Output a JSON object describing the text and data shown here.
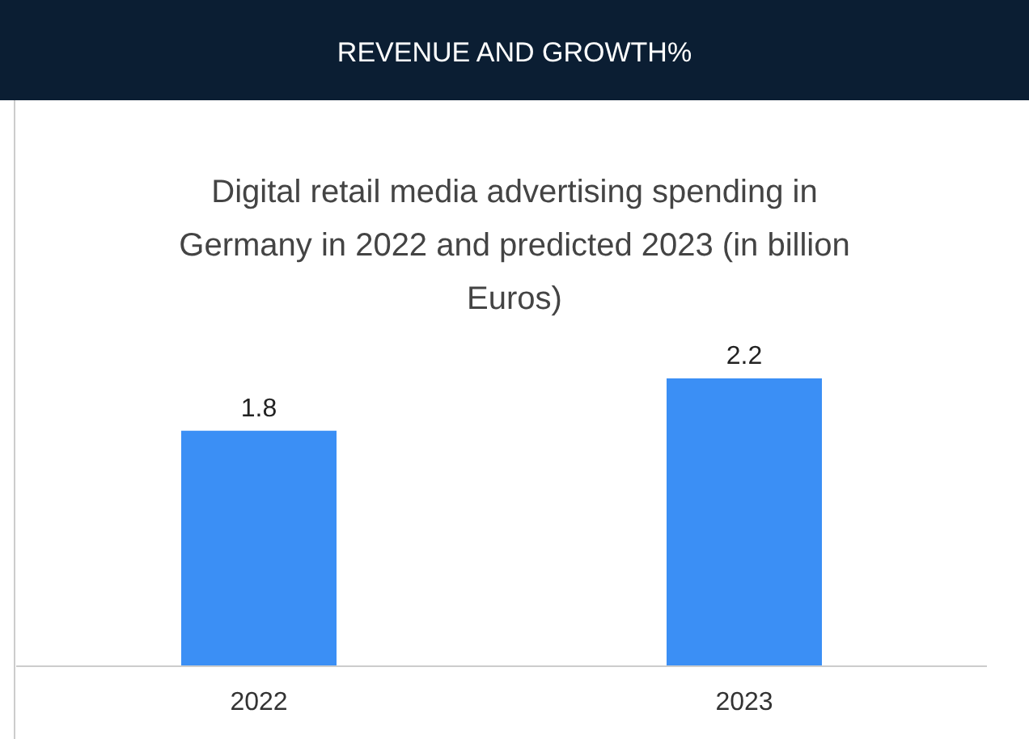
{
  "chart_data": {
    "type": "bar",
    "title": "REVENUE AND GROWTH%",
    "subtitle": "Digital retail media advertising spending in Germany in 2022 and predicted 2023 (in billion Euros)",
    "categories": [
      "2022",
      "2023"
    ],
    "values": [
      1.8,
      2.2
    ],
    "color": "#3b8ff5",
    "data_labels": true
  }
}
